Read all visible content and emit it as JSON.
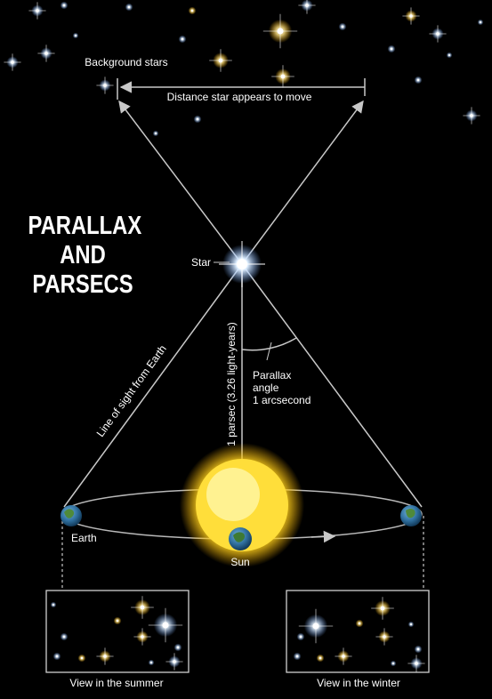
{
  "title": {
    "line1": "PARALLAX",
    "line2": "AND",
    "line3": "PARSECS"
  },
  "labels": {
    "background_stars": "Background stars",
    "distance_move": "Distance star appears to move",
    "star": "Star",
    "line_of_sight": "Line of sight from Earth",
    "parsec": "1 parsec (3.26 light-years)",
    "parallax_1": "Parallax",
    "parallax_2": "angle",
    "parallax_3": "1 arcsecond",
    "earth": "Earth",
    "sun": "Sun",
    "view_summer": "View in the summer",
    "view_winter": "View in the winter"
  },
  "colors": {
    "background": "#000000",
    "line": "#c8c8c8",
    "sun": "#ffd21e",
    "earth_blue": "#2f7fb4",
    "earth_green": "#4f8a3a",
    "text": "#ffffff"
  }
}
